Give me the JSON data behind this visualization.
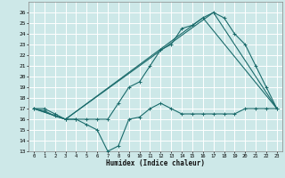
{
  "xlabel": "Humidex (Indice chaleur)",
  "bg_color": "#cde8e8",
  "grid_color": "#ffffff",
  "line_color": "#1a6b6b",
  "xlim": [
    -0.5,
    23.5
  ],
  "ylim": [
    13,
    27
  ],
  "yticks": [
    13,
    14,
    15,
    16,
    17,
    18,
    19,
    20,
    21,
    22,
    23,
    24,
    25,
    26
  ],
  "xticks": [
    0,
    1,
    2,
    3,
    4,
    5,
    6,
    7,
    8,
    9,
    10,
    11,
    12,
    13,
    14,
    15,
    16,
    17,
    18,
    19,
    20,
    21,
    22,
    23
  ],
  "series1_x": [
    0,
    1,
    2,
    3,
    4,
    5,
    6,
    7,
    8,
    9,
    10,
    11,
    12,
    13,
    14,
    15,
    16,
    17,
    18,
    19,
    20,
    21,
    22,
    23
  ],
  "series1_y": [
    17,
    16.8,
    16.3,
    16,
    16,
    15.5,
    15,
    13,
    13.5,
    16,
    16.2,
    17,
    17.5,
    17,
    16.5,
    16.5,
    16.5,
    16.5,
    16.5,
    16.5,
    17,
    17,
    17,
    17
  ],
  "series2_x": [
    0,
    1,
    2,
    3,
    4,
    5,
    6,
    7,
    8,
    9,
    10,
    11,
    12,
    13,
    14,
    15,
    16,
    17,
    18,
    19,
    20,
    21,
    22,
    23
  ],
  "series2_y": [
    17,
    17,
    16.5,
    16,
    16,
    16,
    16,
    16,
    17.5,
    19,
    19.5,
    21,
    22.5,
    23,
    24.5,
    24.8,
    25.5,
    26,
    25.5,
    24,
    23,
    21,
    19,
    17
  ],
  "series3_x": [
    0,
    3,
    16,
    23
  ],
  "series3_y": [
    17,
    16,
    25.5,
    17
  ],
  "series4_x": [
    0,
    3,
    17,
    23
  ],
  "series4_y": [
    17,
    16,
    26,
    17
  ]
}
